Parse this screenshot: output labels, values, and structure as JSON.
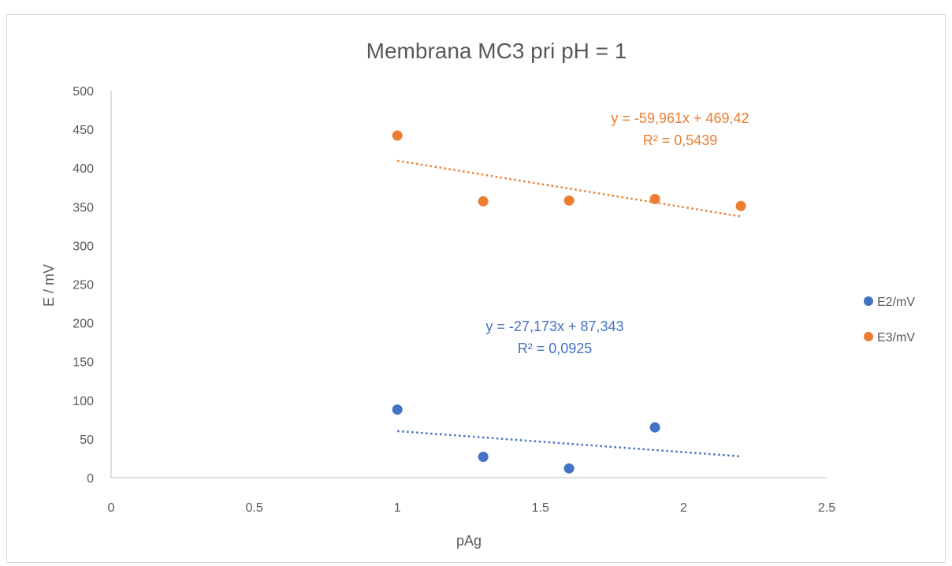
{
  "chart_data": {
    "type": "scatter",
    "title": "Membrana MC3 pri pH = 1",
    "xlabel": "pAg",
    "ylabel": "E / mV",
    "xlim": [
      0,
      2.5
    ],
    "ylim": [
      0,
      500
    ],
    "x_ticks": [
      "0",
      "0.5",
      "1",
      "1.5",
      "2",
      "2.5"
    ],
    "y_ticks": [
      "0",
      "50",
      "100",
      "150",
      "200",
      "250",
      "300",
      "350",
      "400",
      "450",
      "500"
    ],
    "grid": false,
    "legend_position": "right",
    "series": [
      {
        "name": "E2/mV",
        "color": "#4472c4",
        "points": [
          {
            "x": 1.0,
            "y": 88
          },
          {
            "x": 1.3,
            "y": 27
          },
          {
            "x": 1.6,
            "y": 12
          },
          {
            "x": 1.9,
            "y": 65
          }
        ],
        "trendline": {
          "slope": -27.173,
          "intercept": 87.343,
          "x_range": [
            1.0,
            2.2
          ],
          "equation": "y = -27,173x + 87,343",
          "r2": "R² = 0,0925"
        }
      },
      {
        "name": "E3/mV",
        "color": "#ed7d31",
        "points": [
          {
            "x": 1.0,
            "y": 442
          },
          {
            "x": 1.3,
            "y": 357
          },
          {
            "x": 1.6,
            "y": 358
          },
          {
            "x": 1.9,
            "y": 360
          },
          {
            "x": 2.2,
            "y": 351
          }
        ],
        "trendline": {
          "slope": -59.961,
          "intercept": 469.42,
          "x_range": [
            1.0,
            2.2
          ],
          "equation": "y = -59,961x + 469,42",
          "r2": "R² = 0,5439"
        }
      }
    ]
  }
}
